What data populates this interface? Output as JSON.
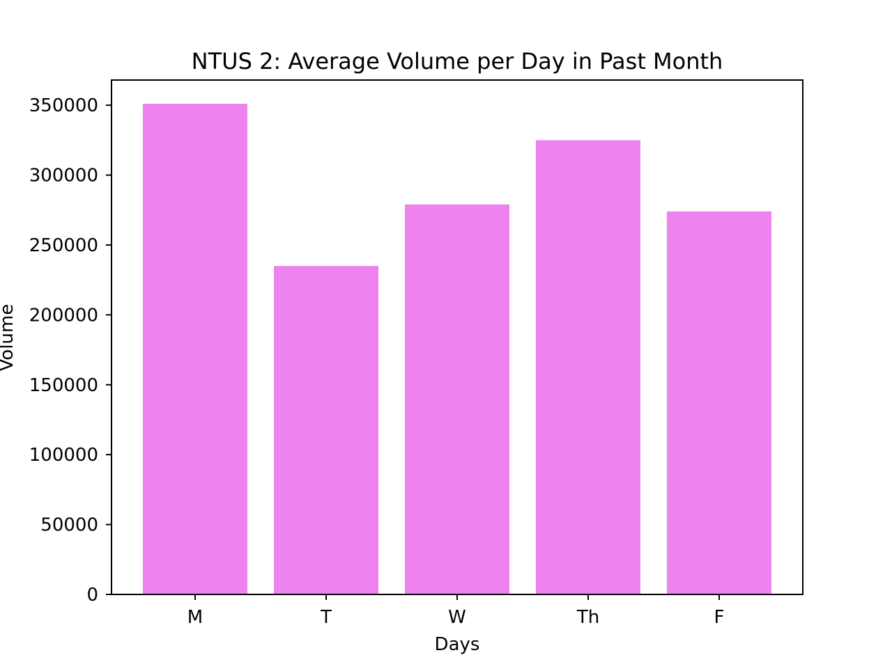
{
  "chart_data": {
    "type": "bar",
    "title": "NTUS 2: Average Volume per Day in Past Month",
    "xlabel": "Days",
    "ylabel": "Volume",
    "categories": [
      "M",
      "T",
      "W",
      "Th",
      "F"
    ],
    "values": [
      351000,
      235000,
      279000,
      325000,
      274000
    ],
    "ylim": [
      0,
      368000
    ],
    "yticks": [
      0,
      50000,
      100000,
      150000,
      200000,
      250000,
      300000,
      350000
    ],
    "ytick_labels": [
      "0",
      "50000",
      "100000",
      "150000",
      "200000",
      "250000",
      "300000",
      "350000"
    ],
    "grid": false,
    "legend": "none",
    "bar_color": "#ee82ee"
  }
}
